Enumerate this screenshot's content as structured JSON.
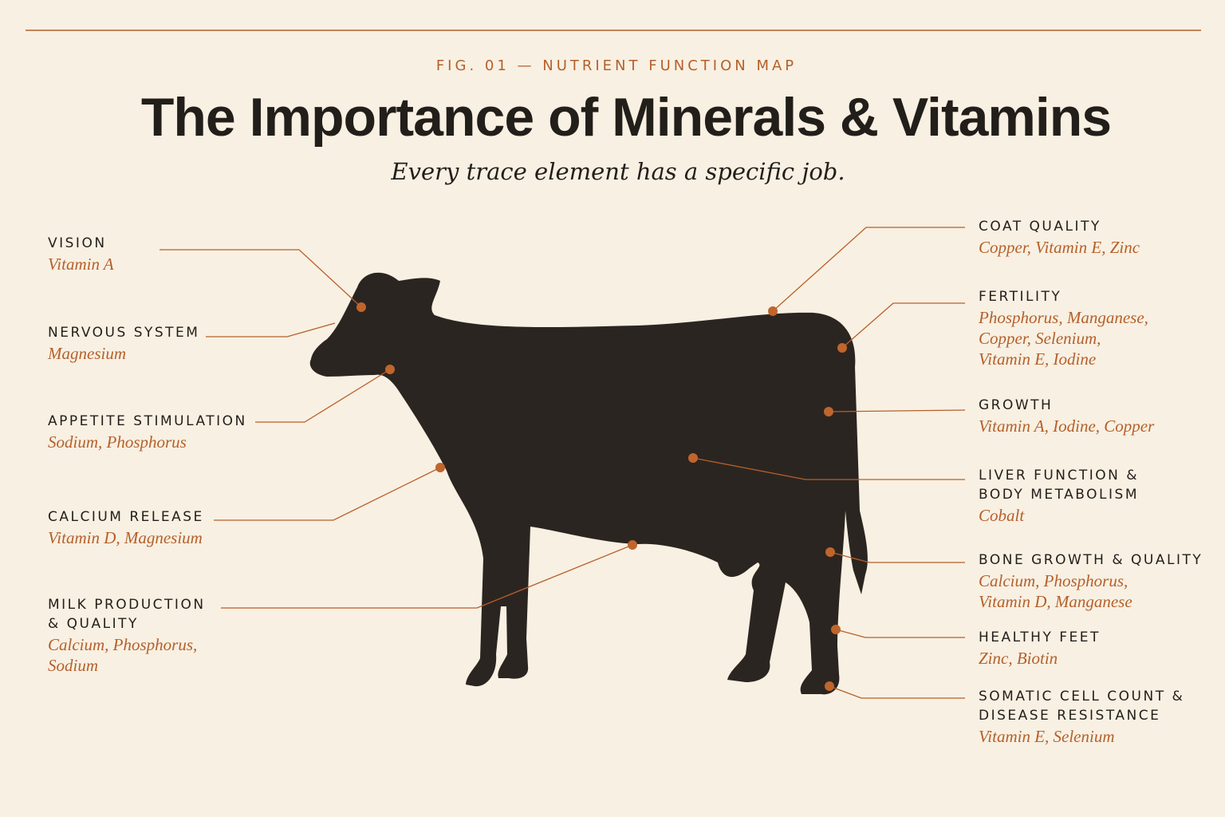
{
  "header": {
    "kicker": "FIG. 01 — NUTRIENT FUNCTION MAP",
    "title": "The Importance of Minerals & Vitamins",
    "subtitle": "Every trace element has a specific job."
  },
  "left_labels": [
    {
      "title": [
        "VISION"
      ],
      "nutrients": [
        "Vitamin A"
      ]
    },
    {
      "title": [
        "NERVOUS SYSTEM"
      ],
      "nutrients": [
        "Magnesium"
      ]
    },
    {
      "title": [
        "APPETITE STIMULATION"
      ],
      "nutrients": [
        "Sodium, Phosphorus"
      ]
    },
    {
      "title": [
        "CALCIUM RELEASE"
      ],
      "nutrients": [
        "Vitamin D, Magnesium"
      ]
    },
    {
      "title": [
        "MILK PRODUCTION",
        "& QUALITY"
      ],
      "nutrients": [
        "Calcium, Phosphorus,",
        "Sodium"
      ]
    }
  ],
  "right_labels": [
    {
      "title": [
        "COAT QUALITY"
      ],
      "nutrients": [
        "Copper, Vitamin E, Zinc"
      ]
    },
    {
      "title": [
        "FERTILITY"
      ],
      "nutrients": [
        "Phosphorus, Manganese,",
        "Copper, Selenium,",
        "Vitamin E, Iodine"
      ]
    },
    {
      "title": [
        "GROWTH"
      ],
      "nutrients": [
        "Vitamin A, Iodine, Copper"
      ]
    },
    {
      "title": [
        "LIVER FUNCTION &",
        "BODY METABOLISM"
      ],
      "nutrients": [
        "Cobalt"
      ]
    },
    {
      "title": [
        "BONE GROWTH & QUALITY"
      ],
      "nutrients": [
        "Calcium, Phosphorus,",
        "Vitamin D, Manganese"
      ]
    },
    {
      "title": [
        "HEALTHY FEET"
      ],
      "nutrients": [
        "Zinc, Biotin"
      ]
    },
    {
      "title": [
        "SOMATIC CELL COUNT &",
        "DISEASE RESISTANCE"
      ],
      "nutrients": [
        "Vitamin E, Selenium"
      ]
    }
  ]
}
